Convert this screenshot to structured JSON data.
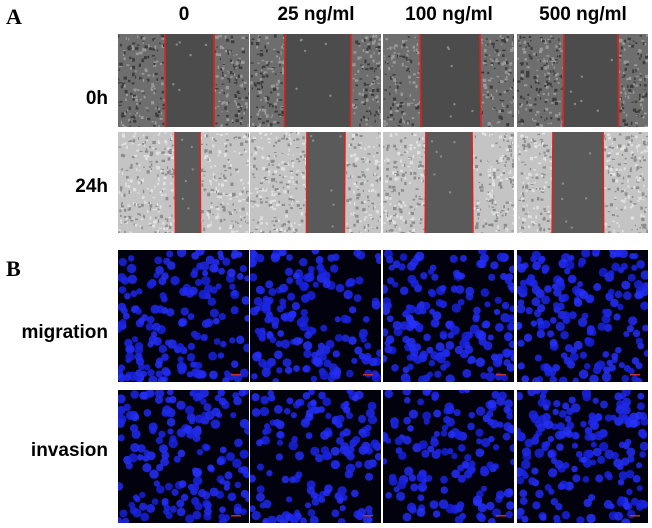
{
  "panels": {
    "a": {
      "letter": "A"
    },
    "b": {
      "letter": "B"
    }
  },
  "columns": [
    "0",
    "25 ng/ml",
    "100 ng/ml",
    "500 ng/ml"
  ],
  "rows_a": [
    "0h",
    "24h"
  ],
  "rows_b": [
    "migration",
    "invasion"
  ],
  "colors": {
    "wound_line": "#e0201c",
    "gap_fill": "#4a4a4a",
    "cell_dark": "#5a5a5a",
    "cell_light": "#bdbdbd",
    "fluor_bg": "#02020f",
    "nucleus": "#1a28e6"
  }
}
